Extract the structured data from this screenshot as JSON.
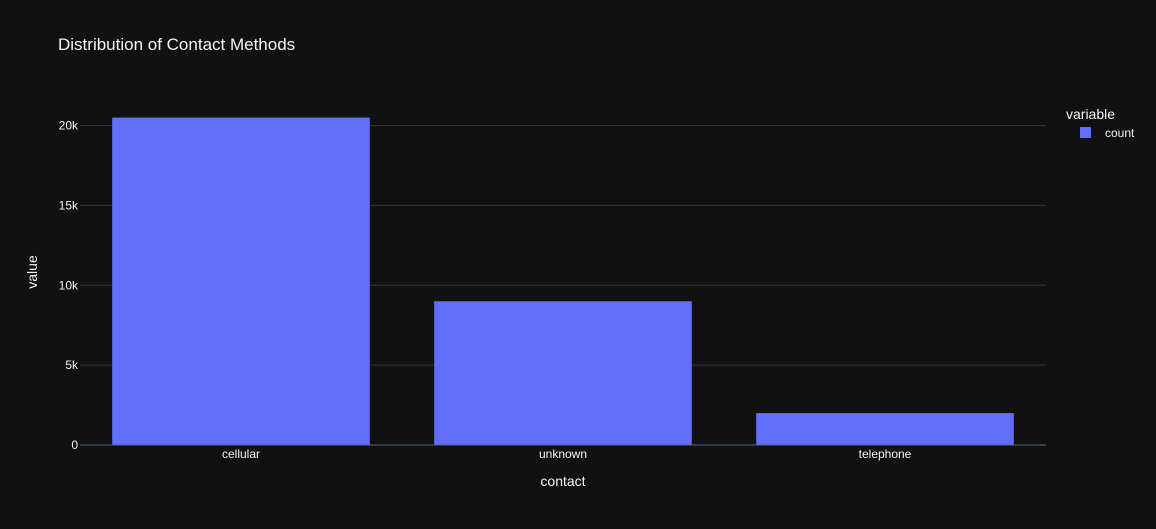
{
  "chart_data": {
    "type": "bar",
    "title": "Distribution of Contact Methods",
    "xlabel": "contact",
    "ylabel": "value",
    "categories": [
      "cellular",
      "unknown",
      "telephone"
    ],
    "series": [
      {
        "name": "count",
        "values": [
          20500,
          9000,
          2000
        ]
      }
    ],
    "ylim": [
      0,
      21600
    ],
    "yticks": [
      0,
      5000,
      10000,
      15000,
      20000
    ],
    "ytick_labels": [
      "0",
      "5k",
      "10k",
      "15k",
      "20k"
    ],
    "grid": true,
    "legend": {
      "title": "variable",
      "placement": "top-right"
    },
    "colors": {
      "background": "#111111",
      "bar": "#636efa",
      "grid": "#283442",
      "axis_line": "#506784",
      "text": "#f2f5fa"
    }
  }
}
